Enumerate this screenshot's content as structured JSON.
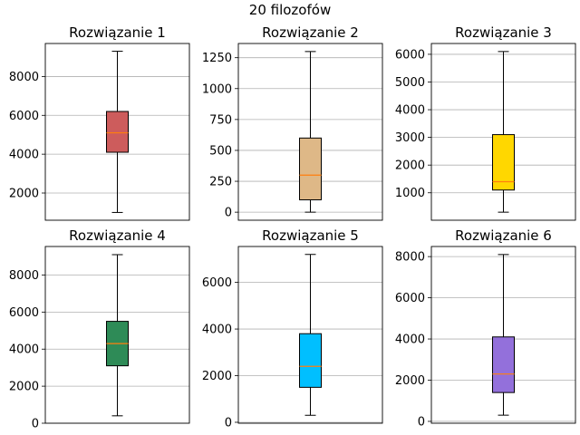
{
  "suptitle": "20 filozofów",
  "chart_data": [
    {
      "type": "box",
      "title": "Rozwiązanie 1",
      "color": "#cd5c5c",
      "stats": {
        "whislo": 1000,
        "q1": 4100,
        "med": 5100,
        "q3": 6200,
        "whishi": 9300
      },
      "ylim": [
        600,
        9700
      ],
      "yticks": [
        2000,
        4000,
        6000,
        8000
      ],
      "ytick_labels": [
        "2000",
        "4000",
        "6000",
        "8000"
      ],
      "grid": true
    },
    {
      "type": "box",
      "title": "Rozwiązanie 2",
      "color": "#deb887",
      "stats": {
        "whislo": 0,
        "q1": 100,
        "med": 300,
        "q3": 600,
        "whishi": 1300
      },
      "ylim": [
        -65,
        1365
      ],
      "yticks": [
        0,
        250,
        500,
        750,
        1000,
        1250
      ],
      "ytick_labels": [
        "0",
        "250",
        "500",
        "750",
        "1000",
        "1250"
      ],
      "grid": true
    },
    {
      "type": "box",
      "title": "Rozwiązanie 3",
      "color": "#ffd700",
      "stats": {
        "whislo": 300,
        "q1": 1100,
        "med": 1400,
        "q3": 3100,
        "whishi": 6100
      },
      "ylim": [
        10,
        6390
      ],
      "yticks": [
        1000,
        2000,
        3000,
        4000,
        5000,
        6000
      ],
      "ytick_labels": [
        "1000",
        "2000",
        "3000",
        "4000",
        "5000",
        "6000"
      ],
      "grid": true
    },
    {
      "type": "box",
      "title": "Rozwiązanie 4",
      "color": "#2e8b57",
      "stats": {
        "whislo": 400,
        "q1": 3100,
        "med": 4300,
        "q3": 5500,
        "whishi": 9100
      },
      "ylim": [
        0,
        9540
      ],
      "yticks": [
        0,
        2000,
        4000,
        6000,
        8000
      ],
      "ytick_labels": [
        "0",
        "2000",
        "4000",
        "6000",
        "8000"
      ],
      "grid": true
    },
    {
      "type": "box",
      "title": "Rozwiązanie 5",
      "color": "#00bfff",
      "stats": {
        "whislo": 300,
        "q1": 1500,
        "med": 2400,
        "q3": 3800,
        "whishi": 7200
      },
      "ylim": [
        -40,
        7540
      ],
      "yticks": [
        0,
        2000,
        4000,
        6000
      ],
      "ytick_labels": [
        "0",
        "2000",
        "4000",
        "6000"
      ],
      "grid": true
    },
    {
      "type": "box",
      "title": "Rozwiązanie 6",
      "color": "#9370db",
      "stats": {
        "whislo": 300,
        "q1": 1400,
        "med": 2300,
        "q3": 4100,
        "whishi": 8100
      },
      "ylim": [
        -90,
        8490
      ],
      "yticks": [
        0,
        2000,
        4000,
        6000,
        8000
      ],
      "ytick_labels": [
        "0",
        "2000",
        "4000",
        "6000",
        "8000"
      ],
      "grid": true
    }
  ]
}
